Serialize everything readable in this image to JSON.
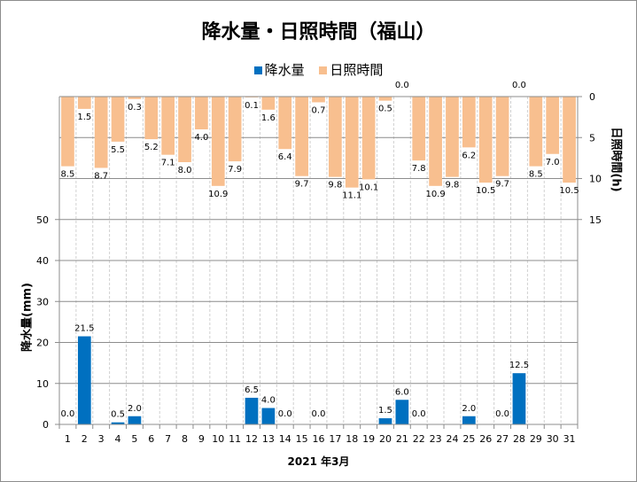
{
  "chart_data": {
    "type": "bar",
    "title": "降水量・日照時間（福山）",
    "xlabel": "2021 年3月",
    "ylabel": "降水量(mm)",
    "y2label": "日照時間(h)",
    "categories": [
      "1",
      "2",
      "3",
      "4",
      "5",
      "6",
      "7",
      "8",
      "9",
      "10",
      "11",
      "12",
      "13",
      "14",
      "15",
      "16",
      "17",
      "18",
      "19",
      "20",
      "21",
      "22",
      "23",
      "24",
      "25",
      "26",
      "27",
      "28",
      "29",
      "30",
      "31"
    ],
    "series": [
      {
        "name": "降水量",
        "axis": "left",
        "color": "#0070c0",
        "values": [
          0.0,
          21.5,
          null,
          0.5,
          2.0,
          null,
          null,
          null,
          null,
          null,
          null,
          6.5,
          4.0,
          0.0,
          null,
          0.0,
          null,
          null,
          null,
          1.5,
          6.0,
          0.0,
          null,
          null,
          2.0,
          null,
          0.0,
          12.5,
          null,
          null,
          null
        ],
        "labels": [
          "0.0",
          "21.5",
          "",
          "0.5",
          "2.0",
          "",
          "",
          "",
          "",
          "",
          "",
          "6.5",
          "4.0",
          "0.0",
          "",
          "0.0",
          "",
          "",
          "",
          "1.5",
          "6.0",
          "0.0",
          "",
          "",
          "2.0",
          "",
          "0.0",
          "12.5",
          "",
          "",
          ""
        ]
      },
      {
        "name": "日照時間",
        "axis": "right-inverted",
        "color": "#f8bf8f",
        "values": [
          8.5,
          1.5,
          8.7,
          5.5,
          0.3,
          5.2,
          7.1,
          8.0,
          4.0,
          10.9,
          7.9,
          0.1,
          1.6,
          6.4,
          9.7,
          0.7,
          9.8,
          11.1,
          10.1,
          0.5,
          0.0,
          7.8,
          10.9,
          9.8,
          6.2,
          10.5,
          9.7,
          0.0,
          8.5,
          7.0,
          10.5
        ],
        "labels": [
          "8.5",
          "1.5",
          "8.7",
          "5.5",
          "0.3",
          "5.2",
          "7.1",
          "8.0",
          "4.0",
          "10.9",
          "7.9",
          "0.1",
          "1.6",
          "6.4",
          "9.7",
          "0.7",
          "9.8",
          "11.1",
          "10.1",
          "0.5",
          "0.0",
          "7.8",
          "10.9",
          "9.8",
          "6.2",
          "10.5",
          "9.7",
          "0.0",
          "8.5",
          "7.0",
          "10.5"
        ]
      }
    ],
    "ylim": [
      0,
      80
    ],
    "yticks": [
      "0",
      "10",
      "20",
      "30",
      "40",
      "50"
    ],
    "y2lim": [
      0,
      40
    ],
    "y2ticks": [
      "0",
      "5",
      "10",
      "15"
    ],
    "grid": true,
    "legend": "top-center"
  }
}
